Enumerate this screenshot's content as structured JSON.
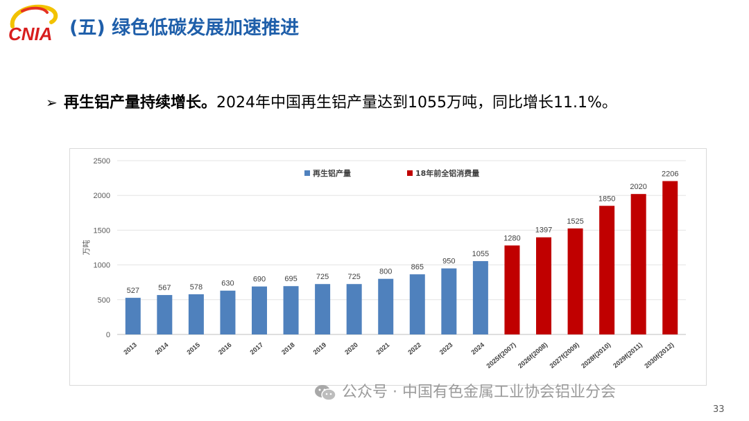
{
  "logo": {
    "text": "CNIA"
  },
  "slide": {
    "title": "(五) 绿色低碳发展加速推进",
    "bullet_lead": "再生铝产量持续增长。",
    "bullet_rest": "2024年中国再生铝产量达到1055万吨，同比增长11.1%。"
  },
  "chart_data": {
    "type": "bar",
    "ylabel": "万吨",
    "ylim": [
      0,
      2500
    ],
    "yticks": [
      0,
      500,
      1000,
      1500,
      2000,
      2500
    ],
    "grid": true,
    "legend_position": "top",
    "categories": [
      "2013",
      "2014",
      "2015",
      "2016",
      "2017",
      "2018",
      "2019",
      "2020",
      "2021",
      "2022",
      "2023",
      "2024",
      "2025f(2007)",
      "2026f(2008)",
      "2027f(2009)",
      "2028f(2010)",
      "2029f(2011)",
      "2030f(2012)"
    ],
    "series": [
      {
        "name": "再生铝产量",
        "color": "#4f81bd",
        "values": [
          527,
          567,
          578,
          630,
          690,
          695,
          725,
          725,
          800,
          865,
          950,
          1055,
          null,
          null,
          null,
          null,
          null,
          null
        ]
      },
      {
        "name": "18年前全铝消费量",
        "color": "#c00000",
        "values": [
          null,
          null,
          null,
          null,
          null,
          null,
          null,
          null,
          null,
          null,
          null,
          null,
          1280,
          1397,
          1525,
          1850,
          2020,
          2206
        ]
      }
    ]
  },
  "footer": {
    "watermark": "公众号 · 中国有色金属工业协会铝业分会",
    "page_number": "33"
  }
}
